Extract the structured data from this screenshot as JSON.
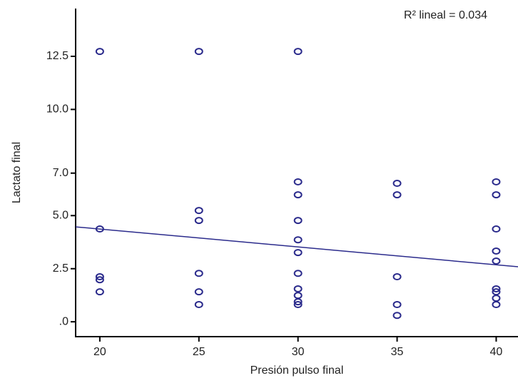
{
  "chart_data": {
    "type": "scatter",
    "x_label": "Presión pulso final",
    "y_label": "Lactato final",
    "annotation": "R² lineal = 0.034",
    "color": "#2b2b8c",
    "series": [
      {
        "x": [
          20,
          20,
          20,
          20,
          20,
          25,
          25,
          25,
          25,
          25,
          25,
          30,
          30,
          30,
          30,
          30,
          30,
          30,
          30,
          30,
          30,
          30,
          35,
          35,
          35,
          35,
          35,
          40,
          40,
          40,
          40,
          40,
          40,
          40,
          40,
          40
        ],
        "values": [
          12.73,
          4.37,
          2.12,
          1.98,
          1.41,
          12.73,
          5.24,
          4.77,
          2.28,
          1.41,
          0.81,
          12.73,
          6.59,
          5.98,
          4.77,
          3.86,
          3.26,
          2.28,
          1.55,
          1.24,
          0.94,
          0.81,
          6.52,
          5.98,
          2.12,
          0.81,
          0.3,
          6.59,
          5.98,
          4.37,
          3.33,
          2.86,
          1.55,
          1.41,
          1.11,
          0.81
        ]
      }
    ],
    "fit_line": {
      "x": [
        18.78,
        41.1
      ],
      "values": [
        4.47,
        2.59
      ]
    },
    "xlim": [
      18.78,
      41.1
    ],
    "ylim": [
      -0.7,
      14.75
    ],
    "xticks": [
      20,
      25,
      30,
      35,
      40
    ],
    "yticks": [
      {
        "value": 0,
        "label": ".0"
      },
      2.5,
      {
        "value": 5,
        "label": "5.0"
      },
      {
        "value": 7,
        "label": "7.0"
      },
      {
        "value": 10,
        "label": "10.0"
      },
      12.5
    ]
  }
}
